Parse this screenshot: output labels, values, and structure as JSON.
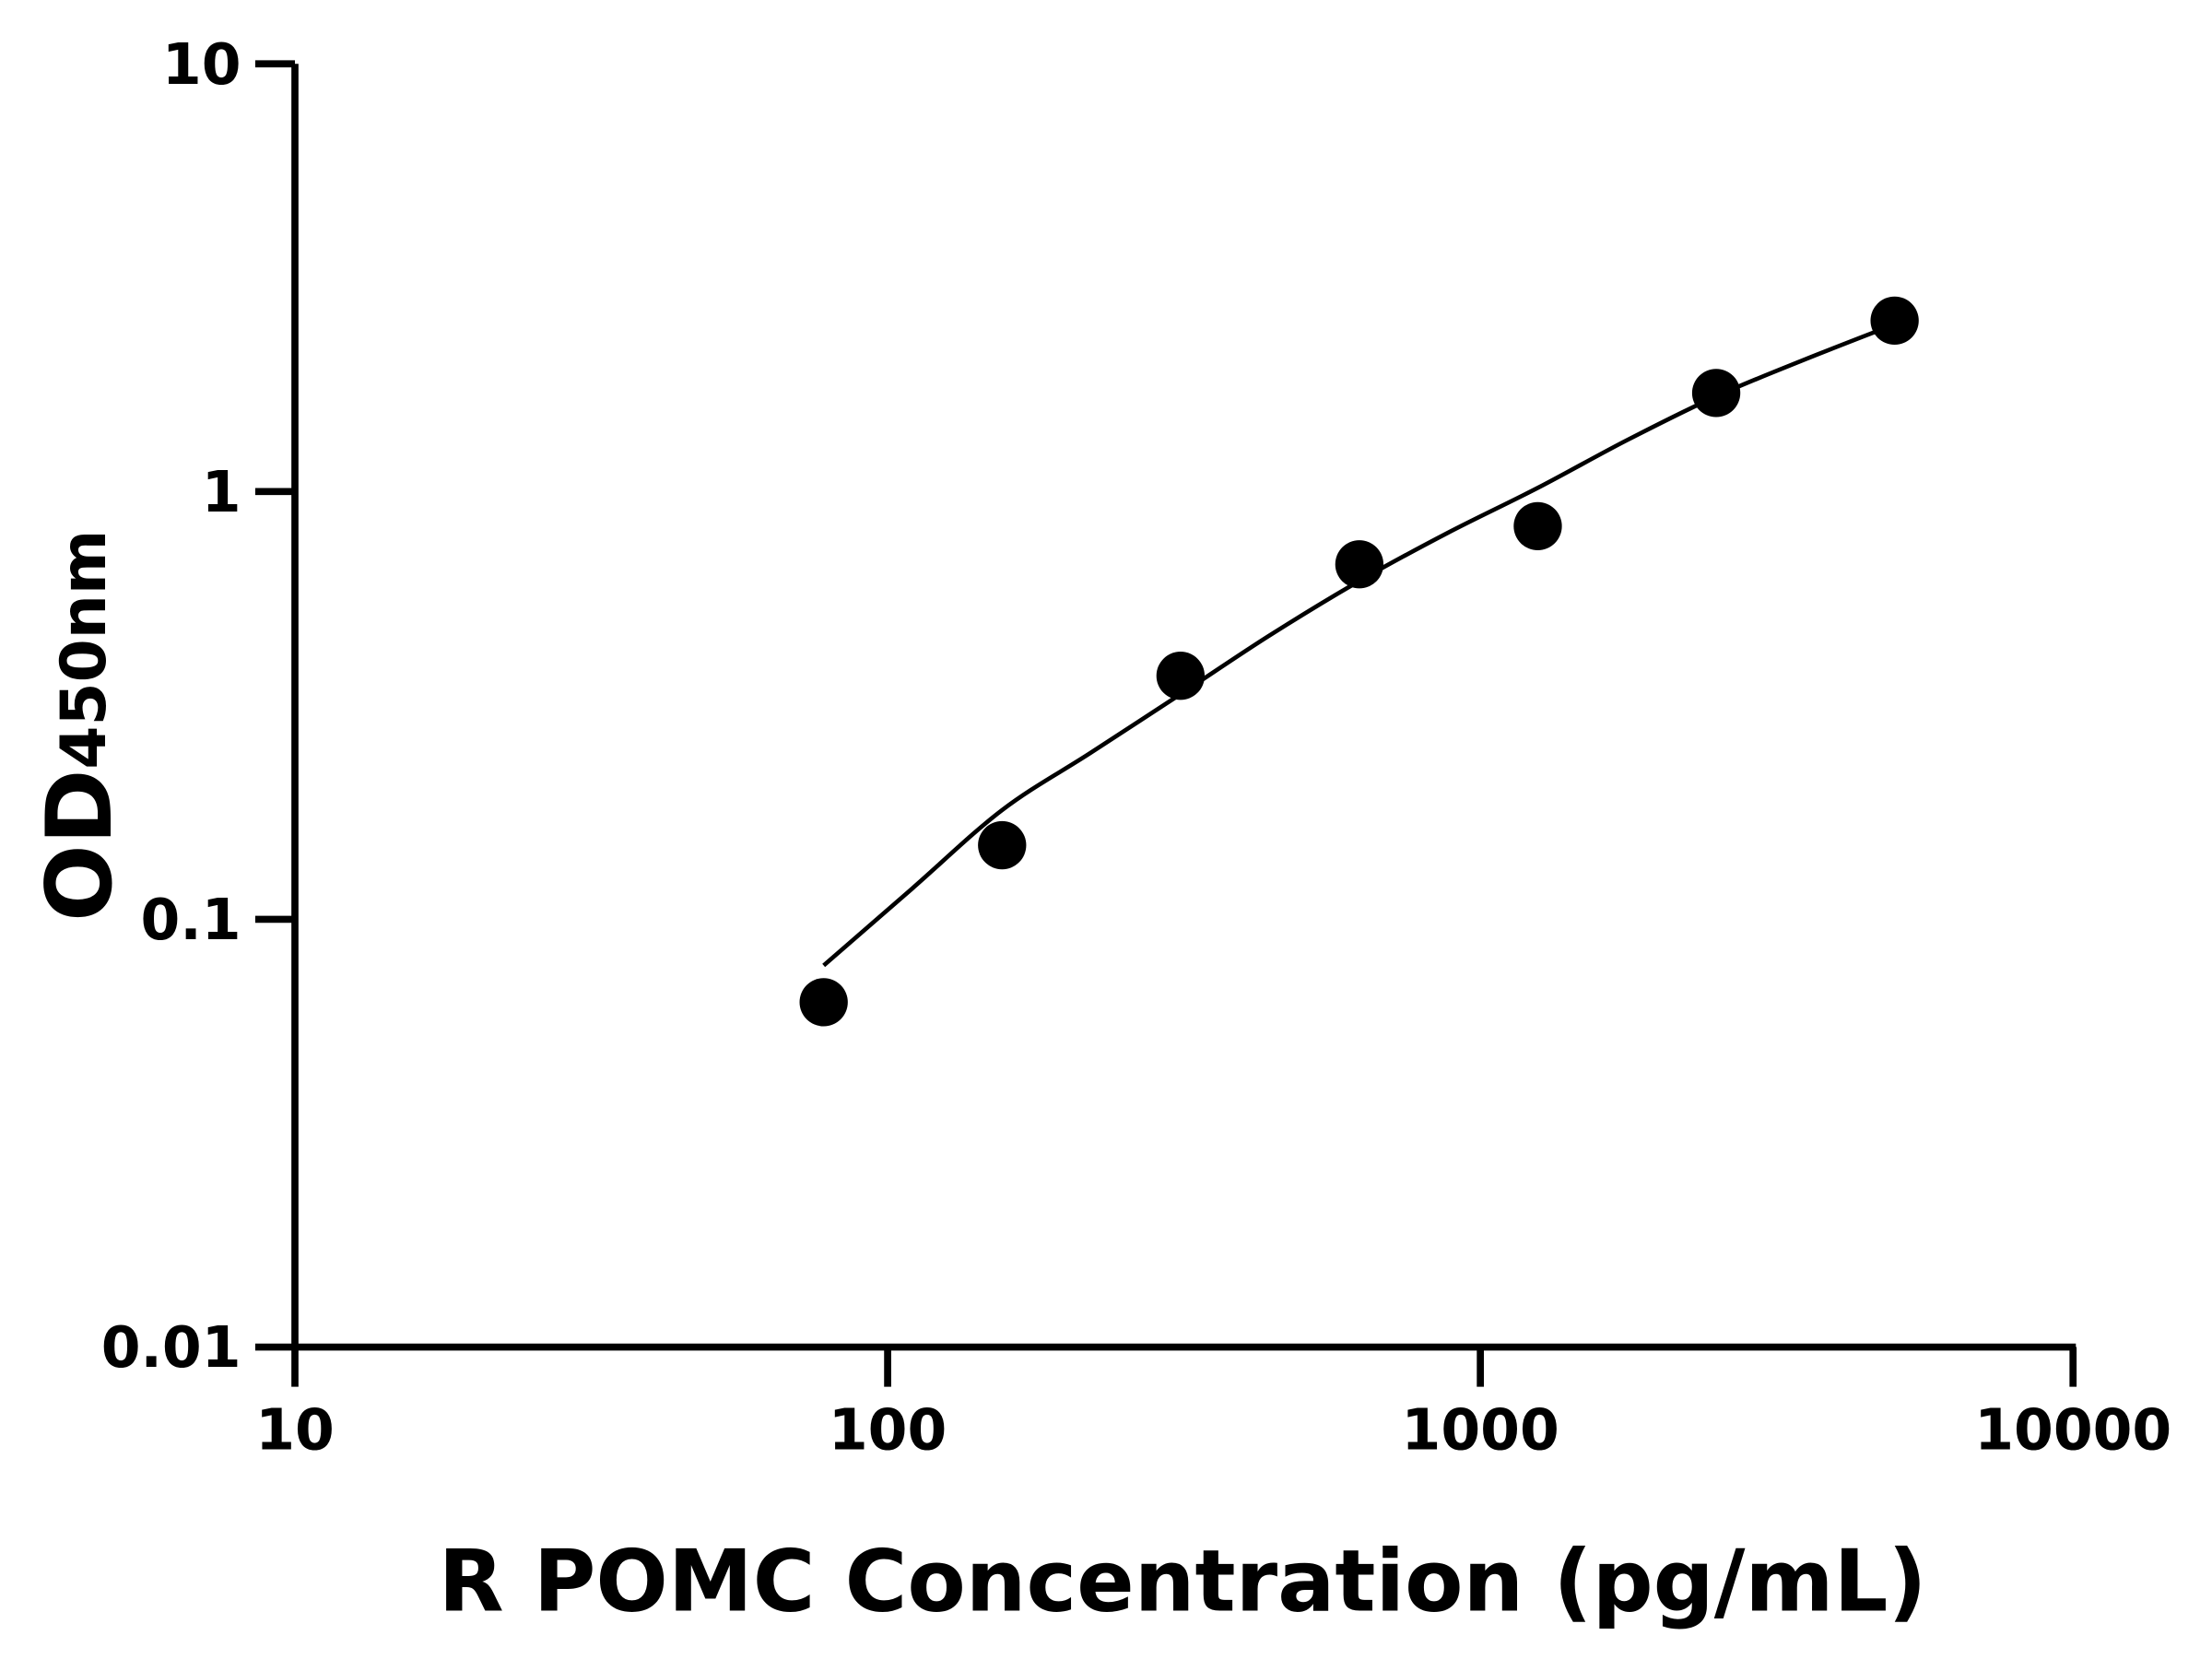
{
  "chart_data": {
    "type": "scatter",
    "xlabel": "R POMC Concentration (pg/mL)",
    "ylabel": "OD",
    "ylabel_subscript": "450nm",
    "xscale": "log",
    "yscale": "log",
    "xlim": [
      10,
      10000
    ],
    "ylim": [
      0.01,
      10
    ],
    "x_ticks": [
      10,
      100,
      1000,
      10000
    ],
    "x_tick_labels": [
      "10",
      "100",
      "1000",
      "10000"
    ],
    "y_ticks": [
      0.01,
      0.1,
      1,
      10
    ],
    "y_tick_labels": [
      "0.01",
      "0.1",
      "1",
      "10"
    ],
    "grid": false,
    "legend": "none",
    "series": [
      {
        "kind": "points",
        "x": [
          78,
          156,
          312,
          625,
          1250,
          2500,
          5000
        ],
        "y": [
          0.064,
          0.149,
          0.371,
          0.676,
          0.83,
          1.7,
          2.51
        ]
      },
      {
        "kind": "fit-curve",
        "x": [
          78,
          110,
          156,
          220,
          312,
          440,
          625,
          880,
          1250,
          1770,
          2500,
          3540,
          5000
        ],
        "y": [
          0.078,
          0.118,
          0.18,
          0.245,
          0.336,
          0.46,
          0.618,
          0.8,
          1.02,
          1.32,
          1.67,
          2.04,
          2.46
        ]
      }
    ],
    "colors": {
      "points": "#000000",
      "line": "#000000",
      "axes": "#000000"
    }
  }
}
